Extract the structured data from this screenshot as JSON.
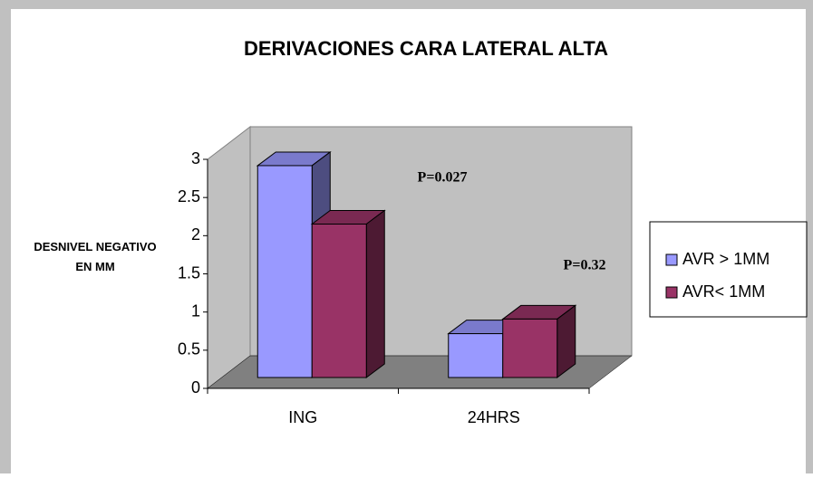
{
  "chart_data": {
    "type": "bar3d",
    "title": "DERIVACIONES CARA LATERAL ALTA",
    "y_label": "DESNIVEL NEGATIVO EN MM",
    "categories": [
      "ING",
      "24HRS"
    ],
    "series": [
      {
        "name": "AVR > 1MM",
        "color": "#9999ff",
        "values": [
          2.9,
          0.6
        ]
      },
      {
        "name": "AVR< 1MM",
        "color": "#993366",
        "values": [
          2.1,
          0.8
        ]
      }
    ],
    "annotations": [
      "P=0.027",
      "P=0.32"
    ],
    "ylim": [
      0,
      3
    ],
    "yticks": [
      0,
      0.5,
      1,
      1.5,
      2,
      2.5,
      3
    ],
    "legend": "right"
  }
}
